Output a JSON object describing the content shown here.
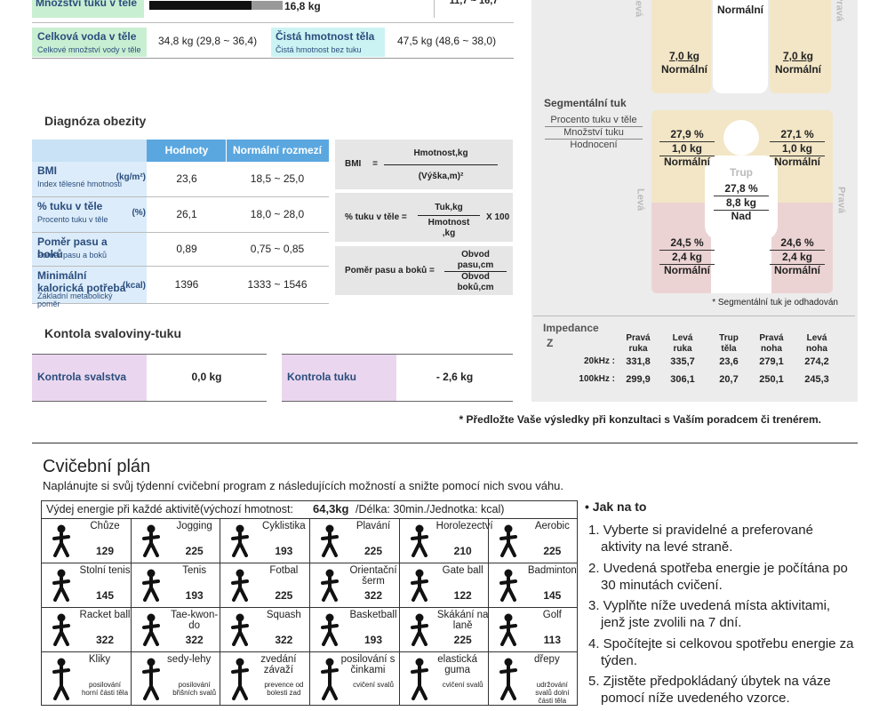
{
  "body_composition": {
    "fat_mass": {
      "label": "Množství tuku v těle",
      "value": "16,8 kg",
      "range": "11,7 ~ 16,7"
    },
    "total_water": {
      "label": "Celková voda v těle",
      "sublabel": "Celkové množství vody v těle",
      "value": "34,8 kg (29,8 ~ 36,4)"
    },
    "lean_mass": {
      "label": "Čistá hmotnost těla",
      "sublabel": "Čistá hmotnost bez tuku",
      "value": "47,5 kg (48,6 ~ 38,0)"
    }
  },
  "segmental_lean": {
    "side_left": "Levá",
    "side_right": "Pravá",
    "trunk_rating": "Normální",
    "left_leg": {
      "mass": "7,0 kg",
      "rating": "Normální"
    },
    "right_leg": {
      "mass": "7,0 kg",
      "rating": "Normální"
    }
  },
  "segmental_fat": {
    "title": "Segmentální tuk",
    "legend": [
      "Procento tuku v těle",
      "Množství tuku",
      "Hodnocení"
    ],
    "side_left": "Levá",
    "side_right": "Pravá",
    "left_arm": {
      "percent": "27,9 %",
      "mass": "1,0 kg",
      "rating": "Normální"
    },
    "right_arm": {
      "percent": "27,1 %",
      "mass": "1,0 kg",
      "rating": "Normální"
    },
    "trunk": {
      "label": "Trup",
      "percent": "27,8 %",
      "mass": "8,8 kg",
      "rating": "Nad"
    },
    "left_leg": {
      "percent": "24,5 %",
      "mass": "2,4 kg",
      "rating": "Normální"
    },
    "right_leg": {
      "percent": "24,6 %",
      "mass": "2,4 kg",
      "rating": "Normální"
    },
    "note": "* Segmentální tuk je odhadován"
  },
  "impedance": {
    "title": "Impedance",
    "symbol": "Z",
    "headers": [
      "Pravá ruka",
      "Levá ruka",
      "Trup těla",
      "Pravá noha",
      "Levá noha"
    ],
    "rows": [
      {
        "label": "20kHz :",
        "values": [
          "331,8",
          "335,7",
          "23,6",
          "279,1",
          "274,2"
        ]
      },
      {
        "label": "100kHz :",
        "values": [
          "299,9",
          "306,1",
          "20,7",
          "250,1",
          "245,3"
        ]
      }
    ]
  },
  "footnote": "* Předložte Vaše výsledky při konzultaci s Vaším poradcem či trenérem.",
  "obesity": {
    "title": "Diagnóza obezity",
    "headers": [
      "Hodnoty",
      "Normální rozmezí"
    ],
    "rows": [
      {
        "label": "BMI",
        "unit": "(kg/m²)",
        "sublabel": "Index tělesné hmotnosti",
        "value": "23,6",
        "range": "18,5 ~ 25,0"
      },
      {
        "label": "% tuku v těle",
        "unit": "(%)",
        "sublabel": "Procento tuku v těle",
        "value": "26,1",
        "range": "18,0 ~ 28,0"
      },
      {
        "label": "Poměr pasu a boků",
        "sublabel": "Poměr pasu a boků",
        "value": "0,89",
        "range": "0,75 ~ 0,85"
      },
      {
        "label": "Minimální kalorická potřeba",
        "unit": "(kcal)",
        "sublabel": "Základní metabolický poměr",
        "value": "1396",
        "range": "1333 ~ 1546"
      }
    ],
    "formulas": [
      {
        "name": "BMI =",
        "numerator": "Hmotnost,kg",
        "denominator": "(Výška,m)²"
      },
      {
        "name": "% tuku v těle =",
        "numerator": "Tuk,kg",
        "denominator": "Hmotnost ,kg",
        "factor": "X 100"
      },
      {
        "name": "Poměr pasu a boků =",
        "numerator": "Obvod pasu,cm",
        "denominator": "Obvod boků,cm"
      }
    ]
  },
  "muscle_fat_control": {
    "title": "Kontola svaloviny-tuku",
    "muscle": {
      "label": "Kontrola svalstva",
      "value": "0,0 kg"
    },
    "fat": {
      "label": "Kontrola tuku",
      "value": "- 2,6 kg"
    }
  },
  "exercise_plan": {
    "title": "Cvičební plán",
    "intro": "Naplánujte si svůj týdenní cvičební program z následujících možností a snižte pomocí nich svou váhu.",
    "table_header": {
      "prefix": "Výdej energie při každé aktivitě(výchozí hmotnost:",
      "weight": "64,3kg",
      "suffix": "/Délka: 30min./Jednotka: kcal)"
    },
    "rows": [
      [
        {
          "name": "Chůze",
          "kcal": "129"
        },
        {
          "name": "Jogging",
          "kcal": "225"
        },
        {
          "name": "Cyklistika",
          "kcal": "193"
        },
        {
          "name": "Plavání",
          "kcal": "225"
        },
        {
          "name": "Horolezectví",
          "kcal": "210"
        },
        {
          "name": "Aerobic",
          "kcal": "225"
        }
      ],
      [
        {
          "name": "Stolní tenis",
          "kcal": "145"
        },
        {
          "name": "Tenis",
          "kcal": "193"
        },
        {
          "name": "Fotbal",
          "kcal": "225"
        },
        {
          "name": "Orientační šerm",
          "kcal": "322"
        },
        {
          "name": "Gate ball",
          "kcal": "122"
        },
        {
          "name": "Badminton",
          "kcal": "145"
        }
      ],
      [
        {
          "name": "Racket ball",
          "kcal": "322"
        },
        {
          "name": "Tae-kwon-do",
          "kcal": "322"
        },
        {
          "name": "Squash",
          "kcal": "322"
        },
        {
          "name": "Basketball",
          "kcal": "193"
        },
        {
          "name": "Skákání na laně",
          "kcal": "225"
        },
        {
          "name": "Golf",
          "kcal": "113"
        }
      ],
      [
        {
          "name": "Kliky",
          "note": "posilování horní části těla"
        },
        {
          "name": "sedy-lehy",
          "note": "posilování břišních svalů"
        },
        {
          "name": "zvedání závaží",
          "note": "prevence od bolesti zad"
        },
        {
          "name": "posilování s činkami",
          "note": "cvičení svalů"
        },
        {
          "name": "elastická guma",
          "note": "cvičení svalů"
        },
        {
          "name": "dřepy",
          "note": "udržování svalů dolní části těla"
        }
      ]
    ],
    "how_to": {
      "title": "• Jak na to",
      "steps": [
        "1. Vyberte si pravidelné a preferované aktivity na levé straně.",
        "2. Uvedená spotřeba energie je počítána po 30 minutách cvičení.",
        "3. Vyplňte níže uvedená místa aktivitami, jenž jste zvolili na 7 dní.",
        "4. Spočítejte si celkovou spotřebu energie za týden.",
        "5. Zjistěte předpokládaný úbytek na váze pomocí níže uvedeného vzorce."
      ]
    }
  }
}
